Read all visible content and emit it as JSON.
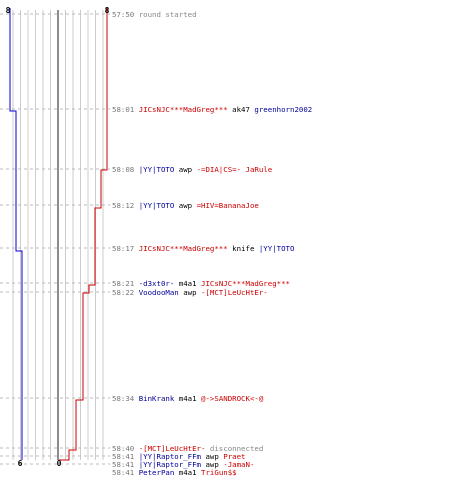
{
  "scoreboard": {
    "blue_color": "#0000cc",
    "red_color": "#cc0000",
    "blue_score_top": "8",
    "red_score_top": "8",
    "blue_score_bottom": "6",
    "red_score_bottom": "0"
  },
  "events": [
    {
      "time": "57:50",
      "parts": [
        {
          "text": "round started",
          "color": "n"
        }
      ]
    },
    {
      "time": "58:01",
      "parts": [
        {
          "text": "JICsNJC***MadGreg***",
          "color": "red"
        },
        {
          "text": " ak47 ",
          "color": "w"
        },
        {
          "text": "greenhorn2002",
          "color": "blue"
        }
      ]
    },
    {
      "time": "58:08",
      "parts": [
        {
          "text": "|YY|TOTO",
          "color": "blue"
        },
        {
          "text": " awp ",
          "color": "w"
        },
        {
          "text": "-=DIA|CS=- JaRule",
          "color": "red"
        }
      ]
    },
    {
      "time": "58:12",
      "parts": [
        {
          "text": "|YY|TOTO",
          "color": "blue"
        },
        {
          "text": " awp ",
          "color": "w"
        },
        {
          "text": "=HIV=BananaJoe",
          "color": "red"
        }
      ]
    },
    {
      "time": "58:17",
      "parts": [
        {
          "text": "JICsNJC***MadGreg***",
          "color": "red"
        },
        {
          "text": " knife ",
          "color": "w"
        },
        {
          "text": "|YY|TOTO",
          "color": "blue"
        }
      ]
    },
    {
      "time": "58:21",
      "parts": [
        {
          "text": "-d3xt0r-",
          "color": "blue"
        },
        {
          "text": " m4a1 ",
          "color": "w"
        },
        {
          "text": "JICsNJC***MadGreg***",
          "color": "red"
        }
      ]
    },
    {
      "time": "58:22",
      "parts": [
        {
          "text": "VoodooMan",
          "color": "blue"
        },
        {
          "text": " awp ",
          "color": "w"
        },
        {
          "text": "-[MCT]LeUcHtEr-",
          "color": "red"
        }
      ]
    },
    {
      "time": "58:34",
      "parts": [
        {
          "text": "BinKrank",
          "color": "blue"
        },
        {
          "text": " m4a1 ",
          "color": "w"
        },
        {
          "text": "@->SANDROCK<-@",
          "color": "red"
        }
      ]
    },
    {
      "time": "58:40",
      "parts": [
        {
          "text": "-[MCT]LeUcHtEr-",
          "color": "red"
        },
        {
          "text": " disconnected",
          "color": "n"
        }
      ]
    },
    {
      "time": "58:41",
      "parts": [
        {
          "text": "|YY|Raptor_FFm",
          "color": "blue"
        },
        {
          "text": " awp ",
          "color": "w"
        },
        {
          "text": "Praet",
          "color": "red"
        }
      ]
    },
    {
      "time": "58:41",
      "parts": [
        {
          "text": "|YY|Raptor_FFm",
          "color": "blue"
        },
        {
          "text": " awp ",
          "color": "w"
        },
        {
          "text": "-JamaN-",
          "color": "red"
        }
      ]
    },
    {
      "time": "58:41",
      "parts": [
        {
          "text": "PeterPan",
          "color": "blue"
        },
        {
          "text": " m4a1 ",
          "color": "w"
        },
        {
          "text": "TriGun$$",
          "color": "red"
        }
      ]
    }
  ]
}
